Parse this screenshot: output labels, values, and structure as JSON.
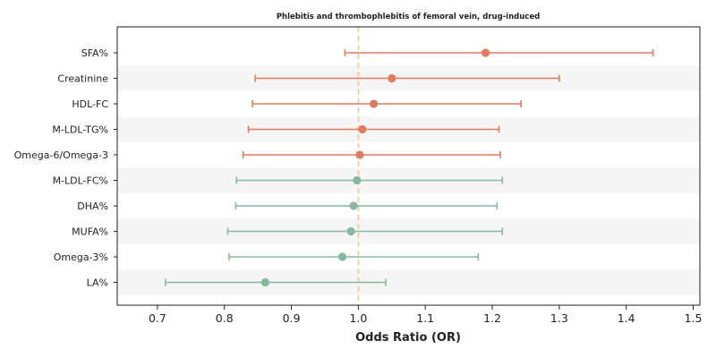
{
  "chart_data": {
    "type": "forest",
    "title": "Phlebitis and thrombophlebitis of femoral vein, drug-induced",
    "xlabel": "Odds Ratio (OR)",
    "ylabel": "",
    "xlim": [
      0.64,
      1.51
    ],
    "xticks": [
      0.7,
      0.8,
      0.9,
      1.0,
      1.1,
      1.2,
      1.3,
      1.4,
      1.5
    ],
    "xtick_labels": [
      "0.7",
      "0.8",
      "0.9",
      "1.0",
      "1.1",
      "1.2",
      "1.3",
      "1.4",
      "1.5"
    ],
    "reference_line": 1.0,
    "colors": {
      "above_one": "#e07b5f",
      "below_one": "#86b89e",
      "reference": "#f5c88a",
      "band": "#f5f5f5",
      "axis": "#222222"
    },
    "rows": [
      {
        "label": "SFA%",
        "or": 1.19,
        "lower": 0.98,
        "upper": 1.44,
        "group": "above_one"
      },
      {
        "label": "Creatinine",
        "or": 1.05,
        "lower": 0.846,
        "upper": 1.3,
        "group": "above_one"
      },
      {
        "label": "HDL-FC",
        "or": 1.023,
        "lower": 0.842,
        "upper": 1.243,
        "group": "above_one"
      },
      {
        "label": "M-LDL-TG%",
        "or": 1.006,
        "lower": 0.836,
        "upper": 1.21,
        "group": "above_one"
      },
      {
        "label": "Omega-6/Omega-3",
        "or": 1.002,
        "lower": 0.828,
        "upper": 1.212,
        "group": "above_one"
      },
      {
        "label": "M-LDL-FC%",
        "or": 0.998,
        "lower": 0.818,
        "upper": 1.215,
        "group": "below_one"
      },
      {
        "label": "DHA%",
        "or": 0.993,
        "lower": 0.817,
        "upper": 1.207,
        "group": "below_one"
      },
      {
        "label": "MUFA%",
        "or": 0.989,
        "lower": 0.805,
        "upper": 1.215,
        "group": "below_one"
      },
      {
        "label": "Omega-3%",
        "or": 0.976,
        "lower": 0.807,
        "upper": 1.179,
        "group": "below_one"
      },
      {
        "label": "LA%",
        "or": 0.861,
        "lower": 0.712,
        "upper": 1.041,
        "group": "below_one"
      }
    ]
  }
}
